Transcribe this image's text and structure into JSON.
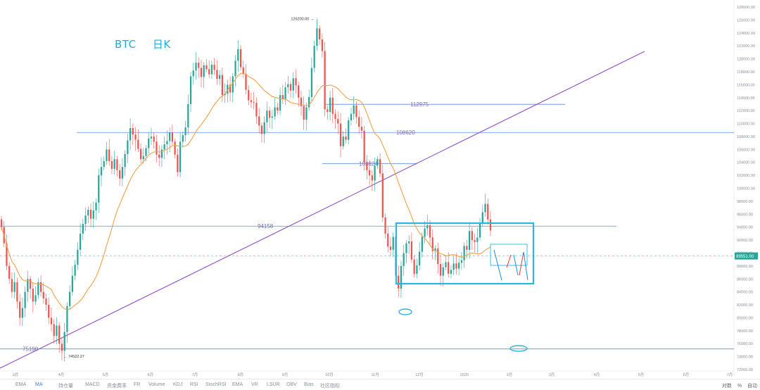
{
  "chart_data": {
    "type": "candlestick",
    "title": "BTC",
    "timeframe": "日K",
    "y_axis_side": "right",
    "ylim": [
      72000,
      128000
    ],
    "y_ticks": [
      "72000.00",
      "74000.00",
      "76000.00",
      "78000.00",
      "80000.00",
      "82000.00",
      "84000.00",
      "86000.00",
      "88000.00",
      "90000.00",
      "92000.00",
      "94000.00",
      "96000.00",
      "98000.00",
      "100000.00",
      "102000.00",
      "104000.00",
      "106000.00",
      "108000.00",
      "110000.00",
      "112000.00",
      "114000.00",
      "116000.00",
      "118000.00",
      "120000.00",
      "122000.00",
      "124000.00",
      "126000.00",
      "128000.00"
    ],
    "x_tick_labels": [
      "3月",
      "4月",
      "5月",
      "6月",
      "7月",
      "8月",
      "9月",
      "10月",
      "11月",
      "12月",
      "2026",
      "2月",
      "3月",
      "4月",
      "5月",
      "6月",
      "7月"
    ],
    "current_price": "89551.00",
    "high_marker": "126200.00",
    "low_marker": "74522.27",
    "closes": [
      94000,
      91500,
      88000,
      86000,
      84000,
      85500,
      82500,
      80000,
      81500,
      84000,
      86000,
      84500,
      82500,
      83500,
      85500,
      84000,
      83000,
      82000,
      80000,
      79000,
      77200,
      78800,
      76000,
      74900,
      77800,
      81800,
      84000,
      86500,
      88200,
      90500,
      93000,
      94500,
      95800,
      96700,
      95300,
      96600,
      97800,
      102000,
      103300,
      104200,
      106000,
      104200,
      103000,
      104500,
      102800,
      101500,
      103300,
      105300,
      107400,
      109300,
      108300,
      107500,
      106100,
      104500,
      105000,
      106200,
      107700,
      108000,
      107200,
      105200,
      104700,
      106000,
      106800,
      107300,
      108600,
      107200,
      105200,
      102500,
      107200,
      108200,
      109400,
      113000,
      117300,
      118200,
      119400,
      118600,
      117200,
      119000,
      118400,
      117600,
      119100,
      118300,
      116900,
      117500,
      114400,
      114600,
      116000,
      114800,
      117300,
      119700,
      121500,
      118700,
      117700,
      115200,
      113600,
      113300,
      113200,
      111100,
      109700,
      108400,
      110200,
      112000,
      110900,
      111100,
      112500,
      112000,
      114400,
      113800,
      115600,
      116100,
      115100,
      117000,
      115900,
      114000,
      112700,
      110600,
      112500,
      114100,
      118600,
      122000,
      124700,
      123000,
      121200,
      112200,
      111800,
      114000,
      111500,
      110700,
      110000,
      106500,
      108000,
      107500,
      110500,
      111500,
      112800,
      111000,
      109500,
      108900,
      104000,
      102800,
      102000,
      101200,
      103500,
      104500,
      102300,
      95500,
      93000,
      91000,
      90500,
      92500,
      86500,
      84500,
      88000,
      90000,
      91500,
      91800,
      89000,
      86800,
      88100,
      90200,
      92500,
      93800,
      94300,
      92400,
      90300,
      90700,
      88300,
      86500,
      87800,
      88600,
      86800,
      87400,
      88400,
      87600,
      88500,
      88900,
      91100,
      90500,
      93400,
      92000,
      91700,
      92400,
      94700,
      96300,
      97600,
      95200,
      93500
    ],
    "ma_label": "MA",
    "horizontal_levels": [
      {
        "value": 112975,
        "label": "112975"
      },
      {
        "value": 108620,
        "label": "108620"
      },
      {
        "value": 103824,
        "label": "103824"
      },
      {
        "value": 94158,
        "label": "94158"
      },
      {
        "value": 75190,
        "label": "75190"
      }
    ],
    "dashed_level": 89551,
    "annotations": [
      "consolidation-box",
      "projection-box",
      "low-circle",
      "target-circle",
      "purple-trendline"
    ],
    "colors": {
      "up": "#26a69a",
      "down": "#ef5350",
      "ma": "#f0a046",
      "levels": "#5b8dd6",
      "trend": "#8e4ec6",
      "annot": "#29b6e0",
      "projection_up": "#e53935",
      "projection_down": "#1e88e5"
    }
  },
  "toolbar": {
    "items": [
      "EMA",
      "MA",
      "持仓量",
      "MACD",
      "资金费率",
      "FR",
      "Volume",
      "KDJ",
      "RSI",
      "StochRSI",
      "EMA",
      "VR",
      "LSUR",
      "OBV",
      "Bias",
      "社区指标"
    ],
    "right": [
      "对数",
      "%",
      "自动"
    ]
  }
}
